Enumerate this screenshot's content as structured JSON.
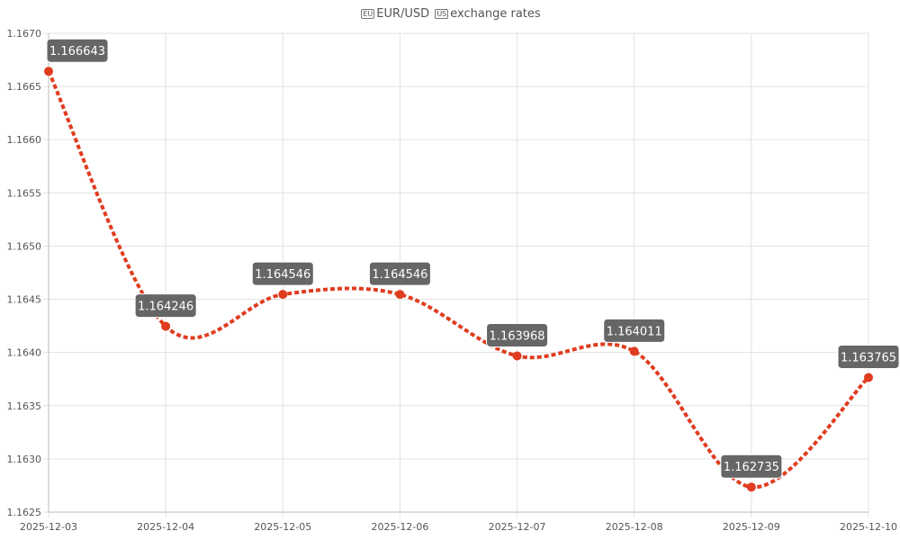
{
  "chart_data": {
    "type": "line",
    "title": "EUR/USD exchange rates",
    "title_flags": [
      "EU",
      "US"
    ],
    "title_text": "exchange rates",
    "title_pair": "EUR/USD",
    "categories": [
      "2025-12-03",
      "2025-12-04",
      "2025-12-05",
      "2025-12-06",
      "2025-12-07",
      "2025-12-08",
      "2025-12-09",
      "2025-12-10"
    ],
    "series": [
      {
        "name": "EUR/USD",
        "values": [
          1.166643,
          1.164246,
          1.164546,
          1.164546,
          1.163968,
          1.164011,
          1.162735,
          1.163765
        ]
      }
    ],
    "data_labels": [
      "1.166643",
      "1.164246",
      "1.164546",
      "1.164546",
      "1.163968",
      "1.164011",
      "1.162735",
      "1.163765"
    ],
    "yticks": [
      "1.1625",
      "1.1630",
      "1.1635",
      "1.1640",
      "1.1645",
      "1.1650",
      "1.1655",
      "1.1660",
      "1.1665",
      "1.1670"
    ],
    "ylim": [
      1.1625,
      1.167
    ],
    "xlabel": "",
    "ylabel": "",
    "grid": true,
    "colors": {
      "line": "#e03c1f",
      "label_bg": "#666666"
    }
  }
}
